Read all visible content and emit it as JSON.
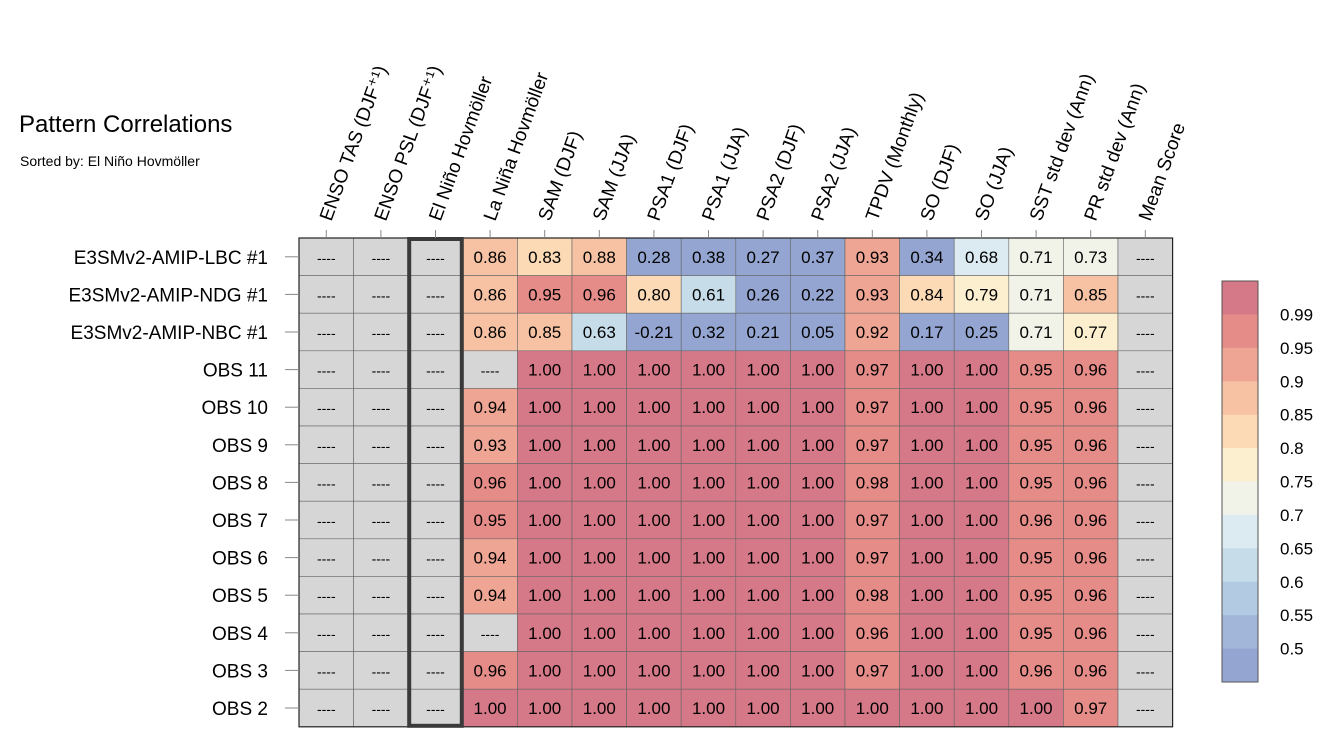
{
  "header": {
    "title": "Pattern Correlations",
    "subtitle": "Sorted by: El Niño Hovmöller"
  },
  "chart_data": {
    "type": "heatmap",
    "columns": [
      "ENSO TAS (DJF⁺¹)",
      "ENSO PSL (DJF⁺¹)",
      "El Niño Hovmöller",
      "La Niña Hovmöller",
      "SAM (DJF)",
      "SAM (JJA)",
      "PSA1 (DJF)",
      "PSA1 (JJA)",
      "PSA2 (DJF)",
      "PSA2 (JJA)",
      "TPDV (Monthly)",
      "SO (DJF)",
      "SO (JJA)",
      "SST std dev (Ann)",
      "PR std dev (Ann)",
      "Mean Score"
    ],
    "rows": [
      "E3SMv2-AMIP-LBC #1",
      "E3SMv2-AMIP-NDG #1",
      "E3SMv2-AMIP-NBC #1",
      "OBS 11",
      "OBS 10",
      "OBS 9",
      "OBS 8",
      "OBS 7",
      "OBS 6",
      "OBS 5",
      "OBS 4",
      "OBS 3",
      "OBS 2"
    ],
    "values": [
      [
        null,
        null,
        null,
        0.86,
        0.83,
        0.88,
        0.28,
        0.38,
        0.27,
        0.37,
        0.93,
        0.34,
        0.68,
        0.71,
        0.73,
        null
      ],
      [
        null,
        null,
        null,
        0.86,
        0.95,
        0.96,
        0.8,
        0.61,
        0.26,
        0.22,
        0.93,
        0.84,
        0.79,
        0.71,
        0.85,
        null
      ],
      [
        null,
        null,
        null,
        0.86,
        0.85,
        0.63,
        -0.21,
        0.32,
        0.21,
        0.05,
        0.92,
        0.17,
        0.25,
        0.71,
        0.77,
        null
      ],
      [
        null,
        null,
        null,
        null,
        1.0,
        1.0,
        1.0,
        1.0,
        1.0,
        1.0,
        0.97,
        1.0,
        1.0,
        0.95,
        0.96,
        null
      ],
      [
        null,
        null,
        null,
        0.94,
        1.0,
        1.0,
        1.0,
        1.0,
        1.0,
        1.0,
        0.97,
        1.0,
        1.0,
        0.95,
        0.96,
        null
      ],
      [
        null,
        null,
        null,
        0.93,
        1.0,
        1.0,
        1.0,
        1.0,
        1.0,
        1.0,
        0.97,
        1.0,
        1.0,
        0.95,
        0.96,
        null
      ],
      [
        null,
        null,
        null,
        0.96,
        1.0,
        1.0,
        1.0,
        1.0,
        1.0,
        1.0,
        0.98,
        1.0,
        1.0,
        0.95,
        0.96,
        null
      ],
      [
        null,
        null,
        null,
        0.95,
        1.0,
        1.0,
        1.0,
        1.0,
        1.0,
        1.0,
        0.97,
        1.0,
        1.0,
        0.96,
        0.96,
        null
      ],
      [
        null,
        null,
        null,
        0.94,
        1.0,
        1.0,
        1.0,
        1.0,
        1.0,
        1.0,
        0.97,
        1.0,
        1.0,
        0.95,
        0.96,
        null
      ],
      [
        null,
        null,
        null,
        0.94,
        1.0,
        1.0,
        1.0,
        1.0,
        1.0,
        1.0,
        0.98,
        1.0,
        1.0,
        0.95,
        0.96,
        null
      ],
      [
        null,
        null,
        null,
        null,
        1.0,
        1.0,
        1.0,
        1.0,
        1.0,
        1.0,
        0.96,
        1.0,
        1.0,
        0.95,
        0.96,
        null
      ],
      [
        null,
        null,
        null,
        0.96,
        1.0,
        1.0,
        1.0,
        1.0,
        1.0,
        1.0,
        0.97,
        1.0,
        1.0,
        0.96,
        0.96,
        null
      ],
      [
        null,
        null,
        null,
        1.0,
        1.0,
        1.0,
        1.0,
        1.0,
        1.0,
        1.0,
        1.0,
        1.0,
        1.0,
        1.0,
        0.97,
        null
      ]
    ],
    "missing_label": "----",
    "sorted_column": "El Niño Hovmöller",
    "colorbar": {
      "ticks": [
        "0.99",
        "0.95",
        "0.9",
        "0.85",
        "0.8",
        "0.75",
        "0.7",
        "0.65",
        "0.6",
        "0.55",
        "0.5"
      ],
      "thresholds": [
        0.5,
        0.55,
        0.6,
        0.65,
        0.7,
        0.75,
        0.8,
        0.85,
        0.9,
        0.95,
        0.99
      ],
      "colors": [
        "#93a5d0",
        "#a2b6d9",
        "#b2cbe2",
        "#c6dce9",
        "#dcebf2",
        "#f1f3e9",
        "#fcefcf",
        "#fbdab5",
        "#f6c2a3",
        "#eea594",
        "#e58c88",
        "#d57887"
      ],
      "missing_color": "#d6d6d6"
    }
  }
}
